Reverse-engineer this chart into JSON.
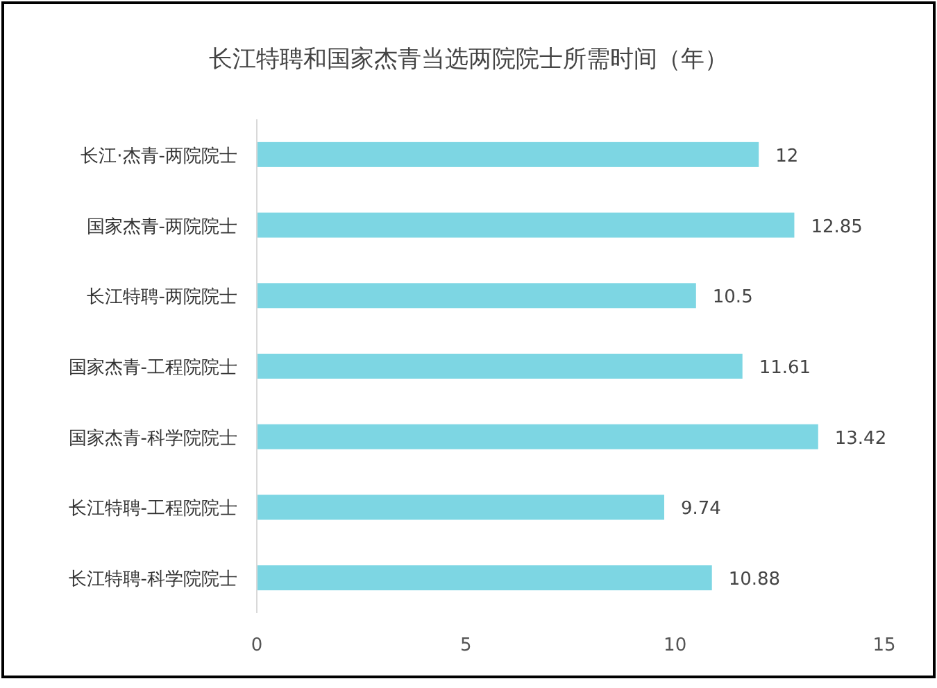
{
  "chart_data": {
    "type": "bar",
    "orientation": "horizontal",
    "title": "长江特聘和国家杰青当选两院院士所需时间（年）",
    "categories": [
      "长江·杰青-两院院士",
      "国家杰青-两院院士",
      "长江特聘-两院院士",
      "国家杰青-工程院院士",
      "国家杰青-科学院院士",
      "长江特聘-工程院院士",
      "长江特聘-科学院院士"
    ],
    "values": [
      12,
      12.85,
      10.5,
      11.61,
      13.42,
      9.74,
      10.88
    ],
    "color": "#7dd6e3",
    "xlim": [
      0,
      15
    ],
    "xticks": [
      0,
      5,
      10,
      15
    ],
    "data_labels": true
  }
}
